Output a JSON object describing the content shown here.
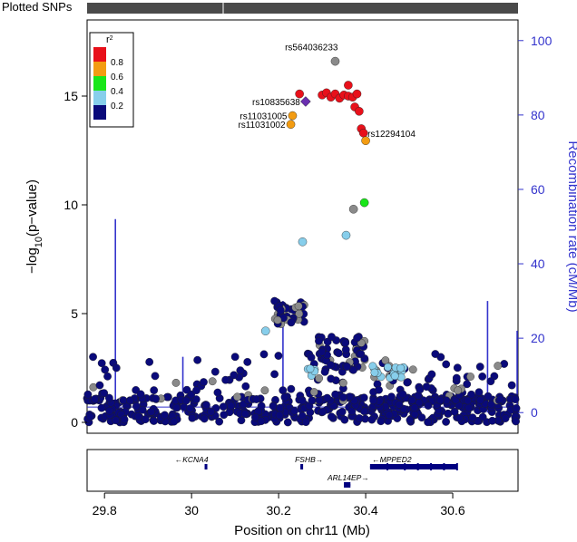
{
  "chart_data": {
    "type": "scatter",
    "title": "Plotted SNPs",
    "xlabel": "Position on chr11 (Mb)",
    "ylabel_left": "-log10(p-value)",
    "ylabel_right": "Recombination rate (cM/Mb)",
    "xlim": [
      29.76,
      30.75
    ],
    "ylim_left": [
      -0.5,
      18.5
    ],
    "ylim_right": [
      -5.55,
      105.55
    ],
    "x_ticks": [
      29.8,
      30,
      30.2,
      30.4,
      30.6
    ],
    "x_tick_labels": [
      "29.8",
      "30",
      "30.2",
      "30.4",
      "30.6"
    ],
    "y_ticks_left": [
      0,
      5,
      10,
      15
    ],
    "y_tick_labels_left": [
      "0",
      "5",
      "10",
      "15"
    ],
    "y_ticks_right": [
      0,
      20,
      40,
      60,
      80,
      100
    ],
    "y_tick_labels_right": [
      "0",
      "20",
      "40",
      "60",
      "80",
      "100"
    ],
    "legend": {
      "title": "r2",
      "labels": [
        "0.8",
        "0.6",
        "0.4",
        "0.2"
      ],
      "colors": [
        "#e8101a",
        "#f39c12",
        "#19e619",
        "#87ceeb",
        "#0a0a7a"
      ]
    },
    "colors": {
      "r2_08": "#e8101a",
      "r2_06": "#f39c12",
      "r2_04": "#19e619",
      "r2_02": "#87ceeb",
      "r2_00": "#0a0a7a",
      "missing": "#8a8a8a",
      "index": "#6a2fb0",
      "recomb": "#3333cc"
    },
    "points": [
      {
        "x": 30.248,
        "y": 15.1,
        "r2": "r2_08"
      },
      {
        "x": 30.3,
        "y": 15.05,
        "r2": "r2_08"
      },
      {
        "x": 30.31,
        "y": 15.15,
        "r2": "r2_08"
      },
      {
        "x": 30.32,
        "y": 14.95,
        "r2": "r2_08"
      },
      {
        "x": 30.33,
        "y": 15.1,
        "r2": "r2_08"
      },
      {
        "x": 30.34,
        "y": 14.9,
        "r2": "r2_08"
      },
      {
        "x": 30.35,
        "y": 15.05,
        "r2": "r2_08"
      },
      {
        "x": 30.36,
        "y": 15.0,
        "r2": "r2_08"
      },
      {
        "x": 30.37,
        "y": 14.95,
        "r2": "r2_08"
      },
      {
        "x": 30.38,
        "y": 15.1,
        "r2": "r2_08"
      },
      {
        "x": 30.375,
        "y": 14.5,
        "r2": "r2_08"
      },
      {
        "x": 30.385,
        "y": 14.3,
        "r2": "r2_08"
      },
      {
        "x": 30.39,
        "y": 13.5,
        "r2": "r2_08"
      },
      {
        "x": 30.395,
        "y": 13.3,
        "r2": "r2_08"
      },
      {
        "x": 30.36,
        "y": 15.5,
        "r2": "r2_08"
      },
      {
        "x": 30.232,
        "y": 14.1,
        "r2": "r2_06"
      },
      {
        "x": 30.228,
        "y": 13.7,
        "r2": "r2_06"
      },
      {
        "x": 30.4,
        "y": 12.95,
        "r2": "r2_06"
      },
      {
        "x": 30.397,
        "y": 10.1,
        "r2": "r2_04"
      },
      {
        "x": 30.255,
        "y": 8.3,
        "r2": "r2_02"
      },
      {
        "x": 30.355,
        "y": 8.6,
        "r2": "r2_02"
      },
      {
        "x": 30.17,
        "y": 4.2,
        "r2": "r2_02"
      },
      {
        "x": 30.33,
        "y": 16.6,
        "r2": "missing"
      },
      {
        "x": 30.372,
        "y": 9.8,
        "r2": "missing"
      },
      {
        "x": 30.262,
        "y": 14.75,
        "r2": "index"
      }
    ],
    "annotations": [
      {
        "x": 30.33,
        "y": 16.6,
        "text": "rs564036233"
      },
      {
        "x": 30.262,
        "y": 14.75,
        "text": "rs10835638"
      },
      {
        "x": 30.232,
        "y": 14.1,
        "text": "rs11031005"
      },
      {
        "x": 30.228,
        "y": 13.7,
        "text": "rs11031002"
      },
      {
        "x": 30.4,
        "y": 13.3,
        "text": "rs12294104"
      }
    ],
    "recombination_spikes": [
      {
        "x": 29.825,
        "rate": 52
      },
      {
        "x": 29.98,
        "rate": 15
      },
      {
        "x": 30.21,
        "rate": 30
      },
      {
        "x": 30.68,
        "rate": 30
      },
      {
        "x": 30.748,
        "rate": 22
      }
    ],
    "genes": [
      {
        "name": "KCNA4",
        "start": 30.03,
        "end": 30.036,
        "label_x": 30.0,
        "strand": "-",
        "row": 1
      },
      {
        "name": "FSHB",
        "start": 30.25,
        "end": 30.256,
        "label_x": 30.27,
        "strand": "+",
        "row": 1
      },
      {
        "name": "MPPED2",
        "start": 30.41,
        "end": 30.61,
        "label_x": 30.46,
        "strand": "-",
        "row": 1
      },
      {
        "name": "ARL14EP",
        "start": 30.35,
        "end": 30.365,
        "label_x": 30.36,
        "strand": "+",
        "row": 2
      }
    ]
  }
}
